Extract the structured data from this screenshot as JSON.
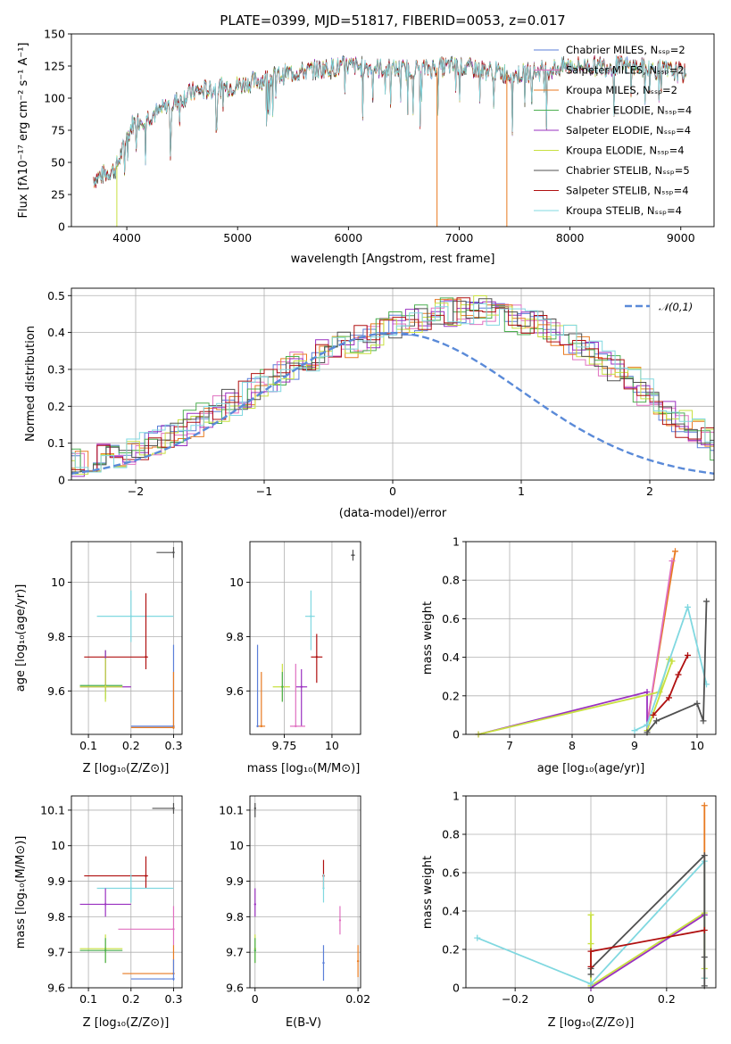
{
  "title": "PLATE=0399, MJD=51817, FIBERID=0053, z=0.017",
  "colors": {
    "chab_miles": "#5b7fd8",
    "salp_miles": "#e070c0",
    "krou_miles": "#e87a20",
    "chab_elodie": "#4caf50",
    "salp_elodie": "#9a30c0",
    "krou_elodie": "#c8e040",
    "chab_stelib": "#505050",
    "salp_stelib": "#b01010",
    "krou_stelib": "#80d8e0",
    "normal": "#5a8ad8"
  },
  "labels": {
    "p1_xlabel": "wavelength [Angstrom, rest frame]",
    "p1_ylabel": "Flux [fλ10⁻¹⁷ erg cm⁻² s⁻¹ A⁻¹]",
    "p2_xlabel": "(data-model)/error",
    "p2_ylabel": "Normed distribution",
    "normal_label": "𝒩(0,1)",
    "age_label": "age  [log₁₀(age/yr)]",
    "zlabel": "Z [log₁₀(Z/Z⊙)]",
    "mass_label": "mass [log₁₀(M/M⊙)]",
    "mass_weight": "mass weight",
    "ebv": "E(B-V)",
    "age_x_label": "age  [log₁₀(age/yr)]"
  },
  "legend": [
    {
      "key": "chab_miles",
      "label": "Chabrier MILES, Nₛₛₚ=2"
    },
    {
      "key": "salp_miles",
      "label": "Salpeter MILES, Nₛₛₚ=2"
    },
    {
      "key": "krou_miles",
      "label": "Kroupa MILES, Nₛₛₚ=2"
    },
    {
      "key": "chab_elodie",
      "label": "Chabrier ELODIE, Nₛₛₚ=4"
    },
    {
      "key": "salp_elodie",
      "label": "Salpeter ELODIE, Nₛₛₚ=4"
    },
    {
      "key": "krou_elodie",
      "label": "Kroupa ELODIE, Nₛₛₚ=4"
    },
    {
      "key": "chab_stelib",
      "label": "Chabrier STELIB, Nₛₛₚ=5"
    },
    {
      "key": "salp_stelib",
      "label": "Salpeter STELIB, Nₛₛₚ=4"
    },
    {
      "key": "krou_stelib",
      "label": "Kroupa STELIB, Nₛₛₚ=4"
    }
  ],
  "chart_data": [
    {
      "type": "line",
      "xlim": [
        3500,
        9300
      ],
      "ylim": [
        0,
        150
      ],
      "xticks": [
        4000,
        5000,
        6000,
        7000,
        8000,
        9000
      ],
      "yticks": [
        0,
        25,
        50,
        75,
        100,
        125,
        150
      ],
      "spectrum_x": [
        3700,
        3900,
        4050,
        4300,
        4600,
        5000,
        5500,
        6000,
        6500,
        7000,
        7500,
        8000,
        8500,
        9000,
        9050
      ],
      "spectrum_y": [
        37,
        45,
        80,
        90,
        105,
        110,
        120,
        125,
        122,
        125,
        118,
        125,
        125,
        120,
        118
      ],
      "dips": [
        {
          "x": 3910,
          "y": 0,
          "color": "krou_elodie"
        },
        {
          "x": 6800,
          "y": 0,
          "color": "krou_miles"
        },
        {
          "x": 7430,
          "y": 0,
          "color": "krou_miles"
        }
      ],
      "legend_position": "upper right"
    },
    {
      "type": "histogram",
      "xlim": [
        -2.5,
        2.5
      ],
      "ylim": [
        0,
        0.52
      ],
      "xticks": [
        -2,
        -1,
        0,
        1,
        2
      ],
      "yticks": [
        0.0,
        0.1,
        0.2,
        0.3,
        0.4,
        0.5
      ],
      "bin_width": 0.1,
      "base_shape": [
        0.02,
        0.025,
        0.03,
        0.035,
        0.04,
        0.045,
        0.05,
        0.06,
        0.07,
        0.08,
        0.09,
        0.1,
        0.11,
        0.13,
        0.15,
        0.17,
        0.19,
        0.21,
        0.23,
        0.25,
        0.27,
        0.29,
        0.31,
        0.33,
        0.35,
        0.36,
        0.37,
        0.38,
        0.39,
        0.41,
        0.42,
        0.43,
        0.44,
        0.45,
        0.455,
        0.46,
        0.46,
        0.455,
        0.45,
        0.44,
        0.43,
        0.42,
        0.4,
        0.38,
        0.36,
        0.34,
        0.32,
        0.3,
        0.27,
        0.24,
        0.21,
        0.18,
        0.155,
        0.13,
        0.11,
        0.09,
        0.075,
        0.06,
        0.05,
        0.042,
        0.035,
        0.03,
        0.027,
        0.025,
        0.022,
        0.02,
        0.018,
        0.017,
        0.016,
        0.015
      ],
      "normal": {
        "mu": 0,
        "sigma": 1
      },
      "legend_position": "upper right"
    },
    {
      "type": "scatter",
      "name": "age vs Z",
      "xlim": [
        0.06,
        0.32
      ],
      "ylim": [
        9.44,
        10.15
      ],
      "xticks": [
        0.1,
        0.2,
        0.3
      ],
      "yticks": [
        9.6,
        9.8,
        10.0
      ],
      "points": [
        {
          "c": "chab_stelib",
          "x": 0.3,
          "y": 10.11,
          "xe": [
            0.26,
            0.3
          ],
          "ye": [
            10.09,
            10.13
          ]
        },
        {
          "c": "krou_stelib",
          "x": 0.2,
          "y": 9.875,
          "xe": [
            0.12,
            0.3
          ],
          "ye": [
            9.78,
            9.97
          ]
        },
        {
          "c": "salp_stelib",
          "x": 0.235,
          "y": 9.725,
          "xe": [
            0.09,
            0.24
          ],
          "ye": [
            9.68,
            9.96
          ]
        },
        {
          "c": "chab_elodie",
          "x": 0.14,
          "y": 9.62,
          "xe": [
            0.08,
            0.18
          ],
          "ye": [
            9.57,
            9.75
          ]
        },
        {
          "c": "salp_elodie",
          "x": 0.14,
          "y": 9.615,
          "xe": [
            0.08,
            0.2
          ],
          "ye": [
            9.6,
            9.75
          ]
        },
        {
          "c": "krou_elodie",
          "x": 0.14,
          "y": 9.615,
          "xe": [
            0.08,
            0.18
          ],
          "ye": [
            9.56,
            9.72
          ]
        },
        {
          "c": "chab_miles",
          "x": 0.3,
          "y": 9.47,
          "xe": [
            0.2,
            0.3
          ],
          "ye": [
            9.46,
            9.77
          ]
        },
        {
          "c": "krou_miles",
          "x": 0.3,
          "y": 9.465,
          "xe": [
            0.2,
            0.3
          ],
          "ye": [
            9.46,
            9.67
          ]
        }
      ]
    },
    {
      "type": "scatter",
      "name": "age vs mass",
      "xlim": [
        9.57,
        10.15
      ],
      "ylim": [
        9.44,
        10.15
      ],
      "xticks": [
        9.75,
        10.0
      ],
      "yticks": [
        9.6,
        9.8,
        10.0
      ],
      "points": [
        {
          "c": "chab_stelib",
          "x": 10.11,
          "y": 10.1,
          "xe": [
            10.1,
            10.12
          ],
          "ye": [
            10.08,
            10.12
          ]
        },
        {
          "c": "krou_stelib",
          "x": 9.89,
          "y": 9.875,
          "xe": [
            9.86,
            9.91
          ],
          "ye": [
            9.75,
            9.97
          ]
        },
        {
          "c": "salp_stelib",
          "x": 9.92,
          "y": 9.725,
          "xe": [
            9.89,
            9.95
          ],
          "ye": [
            9.63,
            9.81
          ]
        },
        {
          "c": "salp_elodie",
          "x": 9.84,
          "y": 9.615,
          "xe": [
            9.81,
            9.87
          ],
          "ye": [
            9.47,
            9.68
          ]
        },
        {
          "c": "krou_elodie",
          "x": 9.74,
          "y": 9.615,
          "xe": [
            9.69,
            9.78
          ],
          "ye": [
            9.56,
            9.7
          ]
        },
        {
          "c": "chab_elodie",
          "x": 9.74,
          "y": 9.615,
          "xe": [
            9.74,
            9.74
          ],
          "ye": [
            9.56,
            9.67
          ]
        },
        {
          "c": "salp_miles",
          "x": 9.81,
          "y": 9.47,
          "xe": [
            9.78,
            9.86
          ],
          "ye": [
            9.47,
            9.7
          ]
        },
        {
          "c": "krou_miles",
          "x": 9.63,
          "y": 9.47,
          "xe": [
            9.61,
            9.65
          ],
          "ye": [
            9.47,
            9.67
          ]
        },
        {
          "c": "chab_miles",
          "x": 9.61,
          "y": 9.47,
          "xe": [
            9.61,
            9.61
          ],
          "ye": [
            9.47,
            9.77
          ]
        }
      ]
    },
    {
      "type": "line",
      "name": "mass weight vs age",
      "xlim": [
        6.3,
        10.3
      ],
      "ylim": [
        0,
        1.0
      ],
      "xticks": [
        7,
        8,
        9,
        10
      ],
      "yticks": [
        0.0,
        0.2,
        0.4,
        0.6,
        0.8,
        1.0
      ],
      "series": [
        {
          "c": "krou_miles",
          "x": [
            9.2,
            9.65
          ],
          "y": [
            0.05,
            0.95
          ]
        },
        {
          "c": "salp_miles",
          "x": [
            9.2,
            9.6
          ],
          "y": [
            0.05,
            0.9
          ]
        },
        {
          "c": "salp_elodie",
          "x": [
            6.5,
            9.2,
            9.2
          ],
          "y": [
            0.0,
            0.22,
            0.02
          ]
        },
        {
          "c": "krou_elodie",
          "x": [
            6.5,
            9.4,
            9.55,
            9.6,
            9.2
          ],
          "y": [
            0.0,
            0.22,
            0.39,
            0.38,
            0.02
          ]
        },
        {
          "c": "krou_stelib",
          "x": [
            9.0,
            9.2,
            9.85,
            10.15
          ],
          "y": [
            0.02,
            0.05,
            0.66,
            0.26
          ]
        },
        {
          "c": "chab_stelib",
          "x": [
            9.2,
            9.35,
            10.0,
            10.1,
            10.15
          ],
          "y": [
            0.01,
            0.07,
            0.16,
            0.07,
            0.69
          ]
        },
        {
          "c": "salp_stelib",
          "x": [
            9.3,
            9.55,
            9.7,
            9.85
          ],
          "y": [
            0.1,
            0.19,
            0.31,
            0.41
          ]
        }
      ]
    },
    {
      "type": "scatter",
      "name": "mass vs Z",
      "xlim": [
        0.06,
        0.32
      ],
      "ylim": [
        9.6,
        10.14
      ],
      "xticks": [
        0.1,
        0.2,
        0.3
      ],
      "yticks": [
        9.6,
        9.7,
        9.8,
        9.9,
        10.0,
        10.1
      ],
      "points": [
        {
          "c": "chab_stelib",
          "x": 0.3,
          "y": 10.105,
          "xe": [
            0.25,
            0.3
          ],
          "ye": [
            10.09,
            10.12
          ]
        },
        {
          "c": "salp_stelib",
          "x": 0.235,
          "y": 9.915,
          "xe": [
            0.09,
            0.24
          ],
          "ye": [
            9.88,
            9.97
          ]
        },
        {
          "c": "krou_stelib",
          "x": 0.2,
          "y": 9.88,
          "xe": [
            0.12,
            0.3
          ],
          "ye": [
            9.84,
            9.92
          ]
        },
        {
          "c": "salp_elodie",
          "x": 0.14,
          "y": 9.835,
          "xe": [
            0.08,
            0.2
          ],
          "ye": [
            9.8,
            9.88
          ]
        },
        {
          "c": "salp_miles",
          "x": 0.3,
          "y": 9.765,
          "xe": [
            0.17,
            0.3
          ],
          "ye": [
            9.72,
            9.83
          ]
        },
        {
          "c": "krou_elodie",
          "x": 0.14,
          "y": 9.71,
          "xe": [
            0.08,
            0.18
          ],
          "ye": [
            9.67,
            9.75
          ]
        },
        {
          "c": "chab_elodie",
          "x": 0.14,
          "y": 9.705,
          "xe": [
            0.08,
            0.18
          ],
          "ye": [
            9.67,
            9.74
          ]
        },
        {
          "c": "krou_miles",
          "x": 0.3,
          "y": 9.64,
          "xe": [
            0.18,
            0.3
          ],
          "ye": [
            9.64,
            9.72
          ]
        },
        {
          "c": "chab_miles",
          "x": 0.3,
          "y": 9.625,
          "xe": [
            0.2,
            0.3
          ],
          "ye": [
            9.62,
            9.68
          ]
        }
      ]
    },
    {
      "type": "scatter",
      "name": "mass vs E(B-V)",
      "xlim": [
        -0.001,
        0.0205
      ],
      "ylim": [
        9.6,
        10.14
      ],
      "xticks": [
        0.0,
        0.02
      ],
      "yticks": [
        9.6,
        9.7,
        9.8,
        9.9,
        10.0,
        10.1
      ],
      "points": [
        {
          "c": "chab_stelib",
          "x": 0.0,
          "y": 10.105,
          "ye": [
            10.08,
            10.12
          ]
        },
        {
          "c": "salp_stelib",
          "x": 0.0133,
          "y": 9.915,
          "ye": [
            9.88,
            9.96
          ]
        },
        {
          "c": "krou_stelib",
          "x": 0.0133,
          "y": 9.88,
          "ye": [
            9.84,
            9.92
          ]
        },
        {
          "c": "salp_elodie",
          "x": 0.0,
          "y": 9.835,
          "ye": [
            9.8,
            9.88
          ]
        },
        {
          "c": "salp_miles",
          "x": 0.0165,
          "y": 9.79,
          "ye": [
            9.75,
            9.83
          ]
        },
        {
          "c": "krou_elodie",
          "x": 0.0,
          "y": 9.71,
          "ye": [
            9.67,
            9.75
          ]
        },
        {
          "c": "chab_elodie",
          "x": 0.0,
          "y": 9.705,
          "ye": [
            9.67,
            9.74
          ]
        },
        {
          "c": "krou_miles",
          "x": 0.02,
          "y": 9.675,
          "ye": [
            9.63,
            9.72
          ]
        },
        {
          "c": "chab_miles",
          "x": 0.0133,
          "y": 9.67,
          "ye": [
            9.62,
            9.72
          ]
        }
      ]
    },
    {
      "type": "line",
      "name": "mass weight vs Z",
      "xlim": [
        -0.33,
        0.33
      ],
      "ylim": [
        0,
        1.0
      ],
      "xticks": [
        -0.2,
        0.0,
        0.2
      ],
      "yticks": [
        0.0,
        0.2,
        0.4,
        0.6,
        0.8,
        1.0
      ],
      "series": [
        {
          "c": "krou_miles",
          "x": [
            0.3,
            0.3
          ],
          "y": [
            0.95,
            0.05
          ]
        },
        {
          "c": "krou_elodie",
          "x": [
            0.0,
            0.0,
            0.0,
            0.3,
            0.3
          ],
          "y": [
            0.38,
            0.23,
            0.01,
            0.39,
            0.1
          ]
        },
        {
          "c": "salp_elodie",
          "x": [
            0.0,
            0.3
          ],
          "y": [
            0.0,
            0.38
          ]
        },
        {
          "c": "krou_stelib",
          "x": [
            -0.3,
            0.0,
            0.3,
            0.3
          ],
          "y": [
            0.26,
            0.02,
            0.66,
            0.05
          ]
        },
        {
          "c": "chab_stelib",
          "x": [
            0.0,
            0.0,
            0.3,
            0.3,
            0.3
          ],
          "y": [
            0.07,
            0.1,
            0.69,
            0.16,
            0.01
          ]
        },
        {
          "c": "salp_stelib",
          "x": [
            0.0,
            0.0,
            0.3
          ],
          "y": [
            0.11,
            0.19,
            0.3
          ]
        }
      ]
    }
  ]
}
